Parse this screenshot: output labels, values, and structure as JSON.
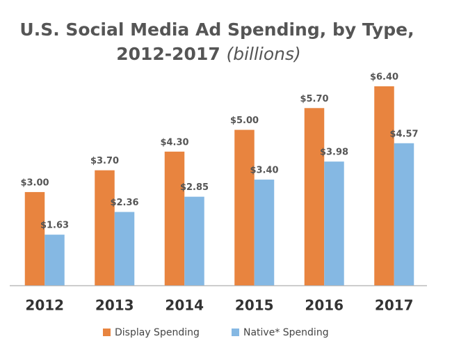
{
  "chart_data": {
    "type": "bar",
    "title_lines": [
      "U.S. Social Media Ad Spending, by Type,",
      "2012-2017"
    ],
    "title_unit": "(billions)",
    "categories": [
      "2012",
      "2013",
      "2014",
      "2015",
      "2016",
      "2017"
    ],
    "series": [
      {
        "name": "Display Spending",
        "color": "#e8843f",
        "values": [
          3.0,
          3.7,
          4.3,
          5.0,
          5.7,
          6.4
        ],
        "value_labels": [
          "$3.00",
          "$3.70",
          "$4.30",
          "$5.00",
          "$5.70",
          "$6.40"
        ]
      },
      {
        "name": "Native* Spending",
        "color": "#85b8e3",
        "values": [
          1.63,
          2.36,
          2.85,
          3.4,
          3.98,
          4.57
        ],
        "value_labels": [
          "$1.63",
          "$2.36",
          "$2.85",
          "$3.40",
          "$3.98",
          "$4.57"
        ]
      }
    ],
    "ylim": [
      0,
      6.4
    ],
    "legend": "bottom"
  }
}
